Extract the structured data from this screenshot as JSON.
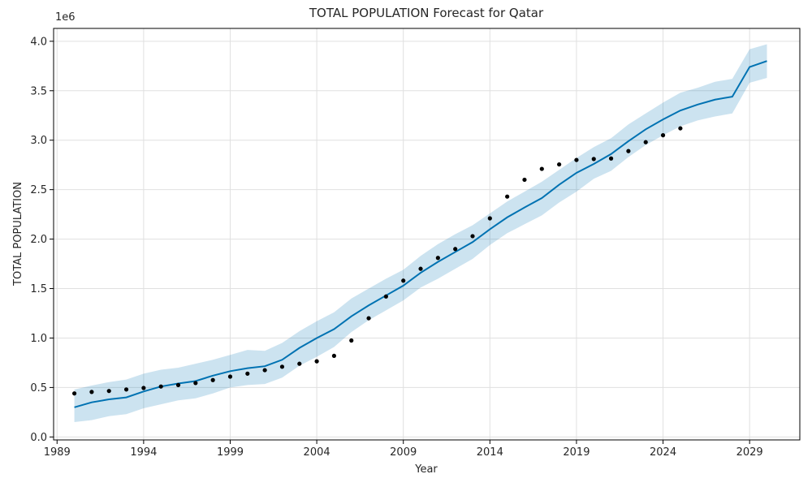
{
  "chart_data": {
    "type": "line",
    "title": "TOTAL POPULATION Forecast for Qatar",
    "xlabel": "Year",
    "ylabel": "TOTAL POPULATION",
    "y_offset_label": "1e6",
    "xlim": [
      1988.8,
      2031.9
    ],
    "ylim": [
      -0.03,
      4.13
    ],
    "x_ticks": [
      1989,
      1994,
      1999,
      2004,
      2009,
      2014,
      2019,
      2024,
      2029
    ],
    "y_ticks": [
      0.0,
      0.5,
      1.0,
      1.5,
      2.0,
      2.5,
      3.0,
      3.5,
      4.0
    ],
    "y_tick_labels": [
      "0.0",
      "0.5",
      "1.0",
      "1.5",
      "2.0",
      "2.5",
      "3.0",
      "3.5",
      "4.0"
    ],
    "grid": true,
    "colors": {
      "forecast": "#0072B2",
      "band": "#0072B2",
      "actual": "#000000",
      "grid": "#e0e0e0"
    },
    "series": [
      {
        "role": "actual",
        "x": [
          1990,
          1991,
          1992,
          1993,
          1994,
          1995,
          1996,
          1997,
          1998,
          1999,
          2000,
          2001,
          2002,
          2003,
          2004,
          2005,
          2006,
          2007,
          2008,
          2009,
          2010,
          2011,
          2012,
          2013,
          2014,
          2015,
          2016,
          2017,
          2018,
          2019,
          2020,
          2021,
          2022,
          2023,
          2024,
          2025
        ],
        "values": [
          0.44,
          0.455,
          0.465,
          0.48,
          0.495,
          0.51,
          0.525,
          0.545,
          0.575,
          0.61,
          0.64,
          0.675,
          0.71,
          0.74,
          0.765,
          0.82,
          0.975,
          1.2,
          1.42,
          1.58,
          1.7,
          1.81,
          1.9,
          2.03,
          2.21,
          2.43,
          2.6,
          2.71,
          2.755,
          2.8,
          2.81,
          2.815,
          2.89,
          2.98,
          3.05,
          3.12
        ]
      },
      {
        "role": "forecast",
        "x": [
          1990,
          1991,
          1992,
          1993,
          1994,
          1995,
          1996,
          1997,
          1998,
          1999,
          2000,
          2001,
          2002,
          2003,
          2004,
          2005,
          2006,
          2007,
          2008,
          2009,
          2010,
          2011,
          2012,
          2013,
          2014,
          2015,
          2016,
          2017,
          2018,
          2019,
          2020,
          2021,
          2022,
          2023,
          2024,
          2025,
          2026,
          2027,
          2028,
          2029,
          2030
        ],
        "values": [
          0.3,
          0.35,
          0.38,
          0.4,
          0.46,
          0.51,
          0.54,
          0.565,
          0.62,
          0.665,
          0.695,
          0.715,
          0.78,
          0.9,
          1.0,
          1.09,
          1.22,
          1.33,
          1.43,
          1.53,
          1.66,
          1.77,
          1.87,
          1.97,
          2.1,
          2.22,
          2.32,
          2.415,
          2.55,
          2.67,
          2.76,
          2.86,
          2.99,
          3.11,
          3.21,
          3.3,
          3.36,
          3.41,
          3.44,
          3.74,
          3.8
        ]
      },
      {
        "role": "lower",
        "x": [
          1990,
          1991,
          1992,
          1993,
          1994,
          1995,
          1996,
          1997,
          1998,
          1999,
          2000,
          2001,
          2002,
          2003,
          2004,
          2005,
          2006,
          2007,
          2008,
          2009,
          2010,
          2011,
          2012,
          2013,
          2014,
          2015,
          2016,
          2017,
          2018,
          2019,
          2020,
          2021,
          2022,
          2023,
          2024,
          2025,
          2026,
          2027,
          2028,
          2029,
          2030
        ],
        "values": [
          0.15,
          0.17,
          0.21,
          0.23,
          0.29,
          0.33,
          0.37,
          0.39,
          0.44,
          0.5,
          0.525,
          0.535,
          0.6,
          0.72,
          0.81,
          0.91,
          1.06,
          1.18,
          1.28,
          1.38,
          1.51,
          1.6,
          1.7,
          1.8,
          1.94,
          2.06,
          2.15,
          2.24,
          2.37,
          2.48,
          2.61,
          2.69,
          2.83,
          2.95,
          3.05,
          3.14,
          3.2,
          3.24,
          3.27,
          3.58,
          3.63
        ]
      },
      {
        "role": "upper",
        "x": [
          1990,
          1991,
          1992,
          1993,
          1994,
          1995,
          1996,
          1997,
          1998,
          1999,
          2000,
          2001,
          2002,
          2003,
          2004,
          2005,
          2006,
          2007,
          2008,
          2009,
          2010,
          2011,
          2012,
          2013,
          2014,
          2015,
          2016,
          2017,
          2018,
          2019,
          2020,
          2021,
          2022,
          2023,
          2024,
          2025,
          2026,
          2027,
          2028,
          2029,
          2030
        ],
        "values": [
          0.48,
          0.52,
          0.555,
          0.58,
          0.64,
          0.68,
          0.7,
          0.74,
          0.78,
          0.83,
          0.88,
          0.87,
          0.95,
          1.07,
          1.17,
          1.26,
          1.4,
          1.5,
          1.6,
          1.69,
          1.83,
          1.95,
          2.05,
          2.14,
          2.26,
          2.38,
          2.48,
          2.58,
          2.7,
          2.82,
          2.93,
          3.02,
          3.16,
          3.27,
          3.38,
          3.48,
          3.53,
          3.59,
          3.62,
          3.92,
          3.97
        ]
      }
    ]
  }
}
